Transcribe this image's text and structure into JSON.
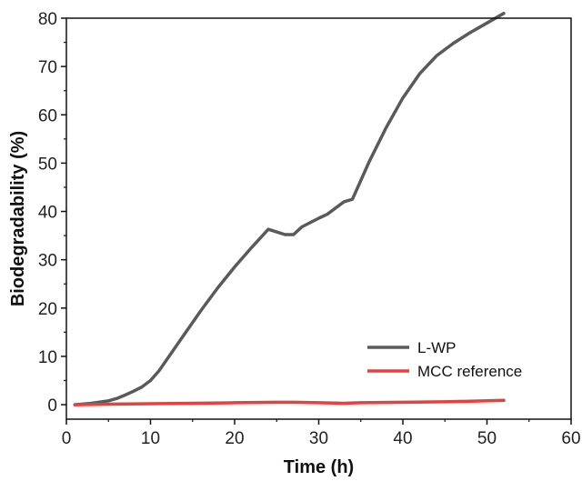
{
  "chart_data": {
    "type": "line",
    "xlabel": "Time (h)",
    "ylabel": "Biodegradability (%)",
    "xlim": [
      0,
      60
    ],
    "ylim": [
      -3,
      80
    ],
    "xticks": [
      0,
      10,
      20,
      30,
      40,
      50,
      60
    ],
    "yticks": [
      0,
      10,
      20,
      30,
      40,
      50,
      60,
      70,
      80
    ],
    "grid": false,
    "legend_position": "bottom-right",
    "series": [
      {
        "name": "L-WP",
        "color": "#5a5a5a",
        "x": [
          1,
          3,
          5,
          6,
          7,
          8,
          9,
          10,
          11,
          12,
          14,
          16,
          18,
          20,
          22,
          24,
          26,
          27,
          28,
          30,
          31,
          33,
          34,
          36,
          38,
          40,
          42,
          44,
          46,
          48,
          50,
          52
        ],
        "y": [
          0,
          0.3,
          0.8,
          1.3,
          2,
          2.8,
          3.7,
          5,
          7,
          9.5,
          14.5,
          19.5,
          24.2,
          28.5,
          32.5,
          36.3,
          35.2,
          35.2,
          36.8,
          38.6,
          39.4,
          42,
          42.5,
          50.3,
          57.3,
          63.5,
          68.5,
          72.2,
          74.8,
          77,
          79,
          81
        ]
      },
      {
        "name": "MCC reference",
        "color": "#e8403c",
        "x": [
          1,
          5,
          10,
          15,
          20,
          25,
          27,
          30,
          33,
          35,
          40,
          45,
          50,
          52
        ],
        "y": [
          0,
          0.1,
          0.2,
          0.3,
          0.4,
          0.5,
          0.5,
          0.4,
          0.3,
          0.4,
          0.5,
          0.6,
          0.8,
          0.9
        ]
      }
    ]
  }
}
